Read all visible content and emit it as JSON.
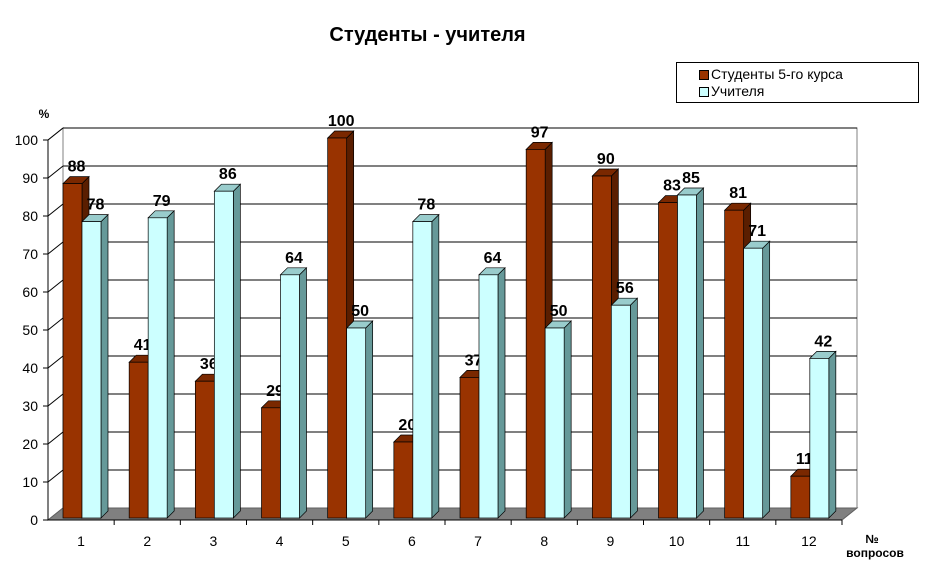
{
  "chart_data": {
    "type": "bar",
    "title": "Студенты - учителя",
    "ylabel": "%",
    "xlabel": "№ вопросов",
    "xlabel_lines": [
      "№",
      "вопросов"
    ],
    "ylim": [
      0,
      100
    ],
    "yticks": [
      0,
      10,
      20,
      30,
      40,
      50,
      60,
      70,
      80,
      90,
      100
    ],
    "categories": [
      "1",
      "2",
      "3",
      "4",
      "5",
      "6",
      "7",
      "8",
      "9",
      "10",
      "11",
      "12"
    ],
    "series": [
      {
        "name": "Студенты 5-го курса",
        "color": "#993300",
        "values": [
          88,
          41,
          36,
          29,
          100,
          20,
          37,
          97,
          90,
          83,
          81,
          11
        ]
      },
      {
        "name": "Учителя",
        "color": "#CCFFFF",
        "values": [
          78,
          79,
          86,
          64,
          50,
          78,
          64,
          50,
          56,
          85,
          71,
          42
        ]
      }
    ],
    "grid": true,
    "legend_position": "top-right"
  }
}
